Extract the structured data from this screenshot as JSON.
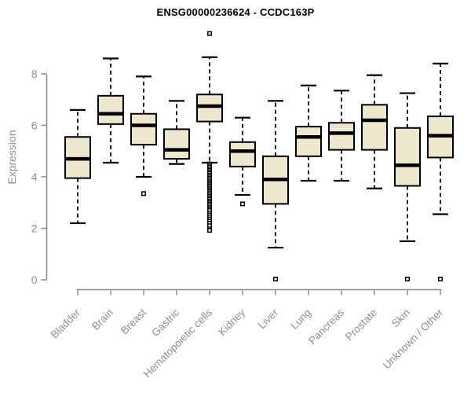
{
  "chart_data": {
    "type": "boxplot",
    "title": "ENSG00000236624 - CCDC163P",
    "ylabel": "Expression",
    "xlabel": "",
    "y_ticks": [
      0,
      2,
      4,
      6,
      8
    ],
    "ylim": [
      0,
      9.7
    ],
    "grid": false,
    "legend": "none",
    "categories": [
      "Bladder",
      "Brain",
      "Breast",
      "Gastric",
      "Hematopoietic cells",
      "Kidney",
      "Liver",
      "Lung",
      "Pancreas",
      "Prostate",
      "Skin",
      "Unknown / Other"
    ],
    "series": [
      {
        "category": "Bladder",
        "whisker_low": 2.2,
        "q1": 3.95,
        "median": 4.7,
        "q3": 5.55,
        "whisker_high": 6.6,
        "outliers": []
      },
      {
        "category": "Brain",
        "whisker_low": 4.55,
        "q1": 6.05,
        "median": 6.45,
        "q3": 7.15,
        "whisker_high": 8.6,
        "outliers": []
      },
      {
        "category": "Breast",
        "whisker_low": 4.0,
        "q1": 5.25,
        "median": 6.0,
        "q3": 6.45,
        "whisker_high": 7.9,
        "outliers": [
          3.35
        ]
      },
      {
        "category": "Gastric",
        "whisker_low": 4.5,
        "q1": 4.7,
        "median": 5.05,
        "q3": 5.85,
        "whisker_high": 6.95,
        "outliers": []
      },
      {
        "category": "Hematopoietic cells",
        "whisker_low": 4.55,
        "q1": 6.15,
        "median": 6.75,
        "q3": 7.2,
        "whisker_high": 8.65,
        "outliers": [
          9.57,
          4.5,
          4.44,
          4.38,
          4.31,
          4.25,
          4.19,
          4.13,
          4.06,
          4.0,
          3.94,
          3.88,
          3.81,
          3.75,
          3.69,
          3.63,
          3.56,
          3.5,
          3.44,
          3.38,
          3.31,
          3.25,
          3.19,
          3.13,
          3.06,
          3.0,
          2.94,
          2.88,
          2.81,
          2.75,
          2.69,
          2.6,
          2.52,
          2.44,
          2.36,
          2.28,
          2.2,
          2.1,
          1.98,
          1.92
        ]
      },
      {
        "category": "Kidney",
        "whisker_low": 3.3,
        "q1": 4.4,
        "median": 5.0,
        "q3": 5.35,
        "whisker_high": 6.3,
        "outliers": [
          2.95
        ]
      },
      {
        "category": "Liver",
        "whisker_low": 1.25,
        "q1": 2.95,
        "median": 3.9,
        "q3": 4.8,
        "whisker_high": 6.95,
        "outliers": [
          0.03
        ]
      },
      {
        "category": "Lung",
        "whisker_low": 3.85,
        "q1": 4.8,
        "median": 5.55,
        "q3": 5.95,
        "whisker_high": 7.55,
        "outliers": []
      },
      {
        "category": "Pancreas",
        "whisker_low": 3.85,
        "q1": 5.05,
        "median": 5.7,
        "q3": 6.1,
        "whisker_high": 7.35,
        "outliers": []
      },
      {
        "category": "Prostate",
        "whisker_low": 3.55,
        "q1": 5.05,
        "median": 6.2,
        "q3": 6.8,
        "whisker_high": 7.95,
        "outliers": []
      },
      {
        "category": "Skin",
        "whisker_low": 1.5,
        "q1": 3.65,
        "median": 4.45,
        "q3": 5.9,
        "whisker_high": 7.25,
        "outliers": [
          0.03
        ]
      },
      {
        "category": "Unknown / Other",
        "whisker_low": 2.55,
        "q1": 4.75,
        "median": 5.6,
        "q3": 6.35,
        "whisker_high": 8.4,
        "outliers": [
          0.03
        ]
      }
    ],
    "colors": {
      "background": "#ffffff",
      "box_fill": "#ece7cd",
      "box_border": "#000000",
      "median": "#000000",
      "whisker": "#000000",
      "outlier_stroke": "#000000",
      "outlier_fill": "#ffffff",
      "axis": "#8c8c8c",
      "tick_text": "#8e8e8e",
      "title_text": "#000000"
    }
  }
}
